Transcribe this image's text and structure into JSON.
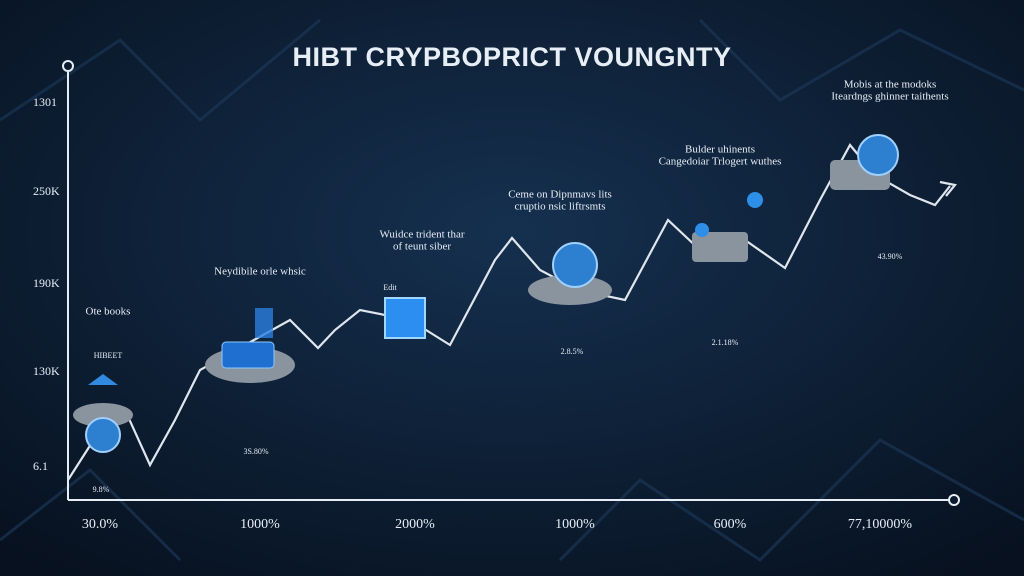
{
  "title": "HIBT CRYPBOPRICT VOUNGNTY",
  "y_axis": {
    "labels": [
      "1301",
      "250K",
      "190K",
      "130K",
      "6.1"
    ]
  },
  "x_axis": {
    "labels": [
      "30.0%",
      "1000%",
      "2000%",
      "1000%",
      "600%",
      "77,10000%"
    ]
  },
  "annotations": [
    {
      "lines": [
        "Ote books"
      ]
    },
    {
      "lines": [
        "HIBEET"
      ]
    },
    {
      "lines": [
        "Neydibile orle whsic"
      ]
    },
    {
      "lines": [
        "Wuidce trident thar",
        "of teunt siber"
      ]
    },
    {
      "lines": [
        "Edit"
      ]
    },
    {
      "lines": [
        "Ceme on Dipnmavs lits",
        "cruptio nsic liftrsmts"
      ]
    },
    {
      "lines": [
        "Bulder uhinents",
        "Cangedoiar Trlogert wuthes"
      ]
    },
    {
      "lines": [
        "Mobis at the modoks",
        "Iteardngs ghinner taithents"
      ]
    }
  ],
  "value_labels": [
    "9.8%",
    "3S.80%",
    "2.8.5%",
    "2.1.18%",
    "43.90%"
  ]
}
